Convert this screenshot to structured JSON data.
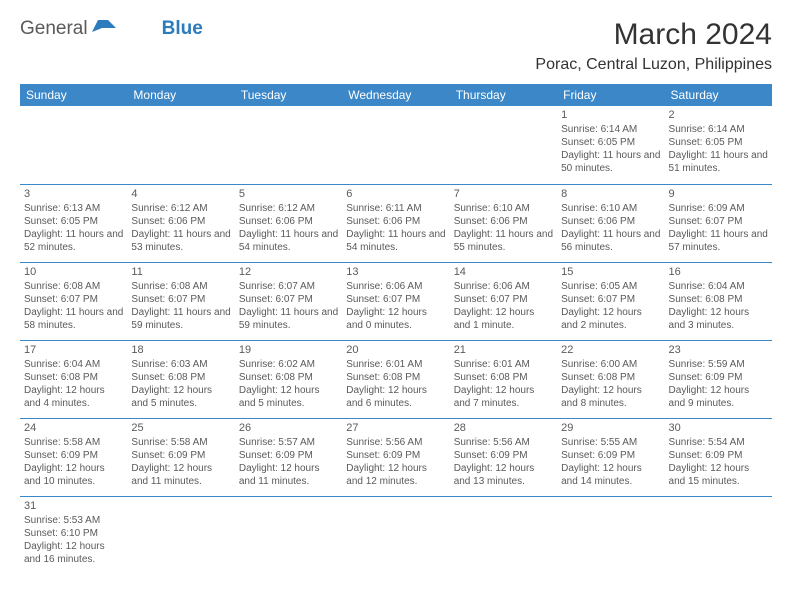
{
  "logo": {
    "general": "General",
    "blue": "Blue"
  },
  "title": "March 2024",
  "location": "Porac, Central Luzon, Philippines",
  "colors": {
    "header_bg": "#3b87c8",
    "header_text": "#ffffff",
    "body_text": "#5a5a5a",
    "border": "#3b87c8",
    "logo_gray": "#5a5a5a",
    "logo_blue": "#2b7bbd"
  },
  "day_headers": [
    "Sunday",
    "Monday",
    "Tuesday",
    "Wednesday",
    "Thursday",
    "Friday",
    "Saturday"
  ],
  "weeks": [
    [
      null,
      null,
      null,
      null,
      null,
      {
        "n": "1",
        "sr": "Sunrise: 6:14 AM",
        "ss": "Sunset: 6:05 PM",
        "dl": "Daylight: 11 hours and 50 minutes."
      },
      {
        "n": "2",
        "sr": "Sunrise: 6:14 AM",
        "ss": "Sunset: 6:05 PM",
        "dl": "Daylight: 11 hours and 51 minutes."
      }
    ],
    [
      {
        "n": "3",
        "sr": "Sunrise: 6:13 AM",
        "ss": "Sunset: 6:05 PM",
        "dl": "Daylight: 11 hours and 52 minutes."
      },
      {
        "n": "4",
        "sr": "Sunrise: 6:12 AM",
        "ss": "Sunset: 6:06 PM",
        "dl": "Daylight: 11 hours and 53 minutes."
      },
      {
        "n": "5",
        "sr": "Sunrise: 6:12 AM",
        "ss": "Sunset: 6:06 PM",
        "dl": "Daylight: 11 hours and 54 minutes."
      },
      {
        "n": "6",
        "sr": "Sunrise: 6:11 AM",
        "ss": "Sunset: 6:06 PM",
        "dl": "Daylight: 11 hours and 54 minutes."
      },
      {
        "n": "7",
        "sr": "Sunrise: 6:10 AM",
        "ss": "Sunset: 6:06 PM",
        "dl": "Daylight: 11 hours and 55 minutes."
      },
      {
        "n": "8",
        "sr": "Sunrise: 6:10 AM",
        "ss": "Sunset: 6:06 PM",
        "dl": "Daylight: 11 hours and 56 minutes."
      },
      {
        "n": "9",
        "sr": "Sunrise: 6:09 AM",
        "ss": "Sunset: 6:07 PM",
        "dl": "Daylight: 11 hours and 57 minutes."
      }
    ],
    [
      {
        "n": "10",
        "sr": "Sunrise: 6:08 AM",
        "ss": "Sunset: 6:07 PM",
        "dl": "Daylight: 11 hours and 58 minutes."
      },
      {
        "n": "11",
        "sr": "Sunrise: 6:08 AM",
        "ss": "Sunset: 6:07 PM",
        "dl": "Daylight: 11 hours and 59 minutes."
      },
      {
        "n": "12",
        "sr": "Sunrise: 6:07 AM",
        "ss": "Sunset: 6:07 PM",
        "dl": "Daylight: 11 hours and 59 minutes."
      },
      {
        "n": "13",
        "sr": "Sunrise: 6:06 AM",
        "ss": "Sunset: 6:07 PM",
        "dl": "Daylight: 12 hours and 0 minutes."
      },
      {
        "n": "14",
        "sr": "Sunrise: 6:06 AM",
        "ss": "Sunset: 6:07 PM",
        "dl": "Daylight: 12 hours and 1 minute."
      },
      {
        "n": "15",
        "sr": "Sunrise: 6:05 AM",
        "ss": "Sunset: 6:07 PM",
        "dl": "Daylight: 12 hours and 2 minutes."
      },
      {
        "n": "16",
        "sr": "Sunrise: 6:04 AM",
        "ss": "Sunset: 6:08 PM",
        "dl": "Daylight: 12 hours and 3 minutes."
      }
    ],
    [
      {
        "n": "17",
        "sr": "Sunrise: 6:04 AM",
        "ss": "Sunset: 6:08 PM",
        "dl": "Daylight: 12 hours and 4 minutes."
      },
      {
        "n": "18",
        "sr": "Sunrise: 6:03 AM",
        "ss": "Sunset: 6:08 PM",
        "dl": "Daylight: 12 hours and 5 minutes."
      },
      {
        "n": "19",
        "sr": "Sunrise: 6:02 AM",
        "ss": "Sunset: 6:08 PM",
        "dl": "Daylight: 12 hours and 5 minutes."
      },
      {
        "n": "20",
        "sr": "Sunrise: 6:01 AM",
        "ss": "Sunset: 6:08 PM",
        "dl": "Daylight: 12 hours and 6 minutes."
      },
      {
        "n": "21",
        "sr": "Sunrise: 6:01 AM",
        "ss": "Sunset: 6:08 PM",
        "dl": "Daylight: 12 hours and 7 minutes."
      },
      {
        "n": "22",
        "sr": "Sunrise: 6:00 AM",
        "ss": "Sunset: 6:08 PM",
        "dl": "Daylight: 12 hours and 8 minutes."
      },
      {
        "n": "23",
        "sr": "Sunrise: 5:59 AM",
        "ss": "Sunset: 6:09 PM",
        "dl": "Daylight: 12 hours and 9 minutes."
      }
    ],
    [
      {
        "n": "24",
        "sr": "Sunrise: 5:58 AM",
        "ss": "Sunset: 6:09 PM",
        "dl": "Daylight: 12 hours and 10 minutes."
      },
      {
        "n": "25",
        "sr": "Sunrise: 5:58 AM",
        "ss": "Sunset: 6:09 PM",
        "dl": "Daylight: 12 hours and 11 minutes."
      },
      {
        "n": "26",
        "sr": "Sunrise: 5:57 AM",
        "ss": "Sunset: 6:09 PM",
        "dl": "Daylight: 12 hours and 11 minutes."
      },
      {
        "n": "27",
        "sr": "Sunrise: 5:56 AM",
        "ss": "Sunset: 6:09 PM",
        "dl": "Daylight: 12 hours and 12 minutes."
      },
      {
        "n": "28",
        "sr": "Sunrise: 5:56 AM",
        "ss": "Sunset: 6:09 PM",
        "dl": "Daylight: 12 hours and 13 minutes."
      },
      {
        "n": "29",
        "sr": "Sunrise: 5:55 AM",
        "ss": "Sunset: 6:09 PM",
        "dl": "Daylight: 12 hours and 14 minutes."
      },
      {
        "n": "30",
        "sr": "Sunrise: 5:54 AM",
        "ss": "Sunset: 6:09 PM",
        "dl": "Daylight: 12 hours and 15 minutes."
      }
    ],
    [
      {
        "n": "31",
        "sr": "Sunrise: 5:53 AM",
        "ss": "Sunset: 6:10 PM",
        "dl": "Daylight: 12 hours and 16 minutes."
      },
      null,
      null,
      null,
      null,
      null,
      null
    ]
  ]
}
